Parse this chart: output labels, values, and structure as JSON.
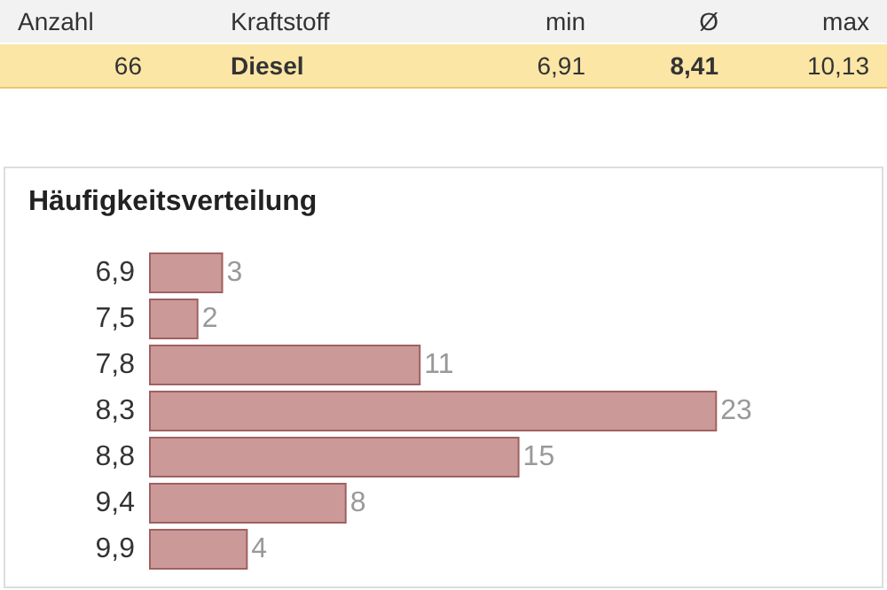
{
  "chart_data": [
    {
      "type": "other",
      "annotations": [
        "Anzahl",
        "Kraftstoff",
        "min",
        "Ø",
        "max",
        "66",
        "Diesel",
        "6,91",
        "8,41",
        "10,13"
      ]
    },
    {
      "type": "bar",
      "orientation": "horizontal",
      "title": "Häufigkeitsverteilung",
      "categories": [
        "6,9",
        "7,5",
        "7,8",
        "8,3",
        "8,8",
        "9,4",
        "9,9"
      ],
      "values": [
        3,
        2,
        11,
        23,
        15,
        8,
        4
      ],
      "color": "#cc9999",
      "data_labels": true
    }
  ]
}
